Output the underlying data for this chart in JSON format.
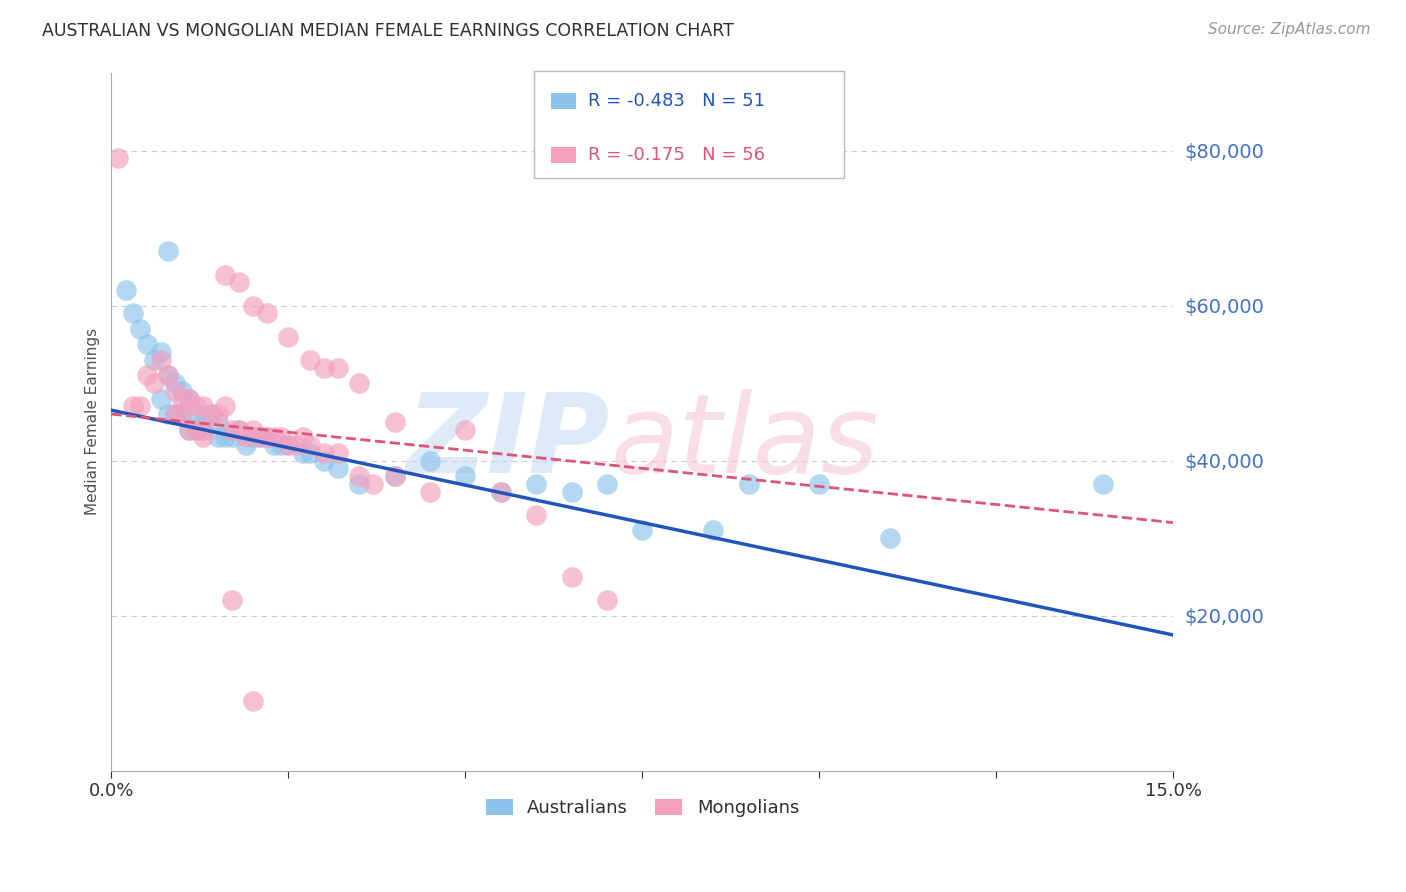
{
  "title": "AUSTRALIAN VS MONGOLIAN MEDIAN FEMALE EARNINGS CORRELATION CHART",
  "source": "Source: ZipAtlas.com",
  "ylabel": "Median Female Earnings",
  "right_ytick_labels": [
    "$20,000",
    "$40,000",
    "$60,000",
    "$80,000"
  ],
  "right_ytick_values": [
    20000,
    40000,
    60000,
    80000
  ],
  "xlim": [
    0.0,
    0.15
  ],
  "ylim": [
    0,
    90000
  ],
  "legend_r_aus": "R = -0.483",
  "legend_n_aus": "N = 51",
  "legend_r_mong": "R = -0.175",
  "legend_n_mong": "N = 56",
  "aus_color": "#8DC3EA",
  "mong_color": "#F4A0BE",
  "aus_line_color": "#2255BB",
  "mong_line_color": "#DD5577",
  "background_color": "#FFFFFF",
  "title_color": "#303030",
  "axis_label_color": "#505050",
  "right_label_color": "#4472C4",
  "grid_color": "#CCCCCC",
  "aus_line_y0": 46500,
  "aus_line_y1": 17500,
  "mong_line_y0": 46000,
  "mong_line_y1": 32000,
  "aus_scatter_x": [
    0.002,
    0.003,
    0.004,
    0.005,
    0.006,
    0.007,
    0.007,
    0.008,
    0.008,
    0.009,
    0.009,
    0.01,
    0.01,
    0.011,
    0.011,
    0.012,
    0.012,
    0.013,
    0.013,
    0.014,
    0.015,
    0.015,
    0.016,
    0.017,
    0.018,
    0.019,
    0.02,
    0.021,
    0.022,
    0.023,
    0.024,
    0.025,
    0.027,
    0.028,
    0.03,
    0.032,
    0.035,
    0.04,
    0.045,
    0.05,
    0.055,
    0.06,
    0.065,
    0.07,
    0.075,
    0.085,
    0.09,
    0.1,
    0.11,
    0.14,
    0.008
  ],
  "aus_scatter_y": [
    62000,
    59000,
    57000,
    55000,
    53000,
    54000,
    48000,
    51000,
    46000,
    50000,
    46000,
    49000,
    46000,
    48000,
    44000,
    46000,
    44000,
    45000,
    44000,
    46000,
    45000,
    43000,
    43000,
    43000,
    44000,
    42000,
    43000,
    43000,
    43000,
    42000,
    42000,
    42000,
    41000,
    41000,
    40000,
    39000,
    37000,
    38000,
    40000,
    38000,
    36000,
    37000,
    36000,
    37000,
    31000,
    31000,
    37000,
    37000,
    30000,
    37000,
    67000
  ],
  "mong_scatter_x": [
    0.001,
    0.003,
    0.004,
    0.005,
    0.006,
    0.007,
    0.008,
    0.009,
    0.009,
    0.01,
    0.01,
    0.011,
    0.011,
    0.012,
    0.012,
    0.013,
    0.013,
    0.013,
    0.014,
    0.015,
    0.016,
    0.017,
    0.018,
    0.019,
    0.02,
    0.021,
    0.022,
    0.023,
    0.024,
    0.025,
    0.026,
    0.027,
    0.028,
    0.03,
    0.032,
    0.035,
    0.037,
    0.04,
    0.045,
    0.05,
    0.055,
    0.06,
    0.065,
    0.07,
    0.016,
    0.018,
    0.02,
    0.022,
    0.025,
    0.028,
    0.03,
    0.032,
    0.035,
    0.04,
    0.017,
    0.02
  ],
  "mong_scatter_y": [
    79000,
    47000,
    47000,
    51000,
    50000,
    53000,
    51000,
    49000,
    46000,
    48000,
    46000,
    48000,
    44000,
    47000,
    44000,
    47000,
    44000,
    43000,
    46000,
    46000,
    47000,
    44000,
    44000,
    43000,
    44000,
    43000,
    43000,
    43000,
    43000,
    42000,
    42000,
    43000,
    42000,
    41000,
    41000,
    38000,
    37000,
    38000,
    36000,
    44000,
    36000,
    33000,
    25000,
    22000,
    64000,
    63000,
    60000,
    59000,
    56000,
    53000,
    52000,
    52000,
    50000,
    45000,
    22000,
    9000
  ]
}
